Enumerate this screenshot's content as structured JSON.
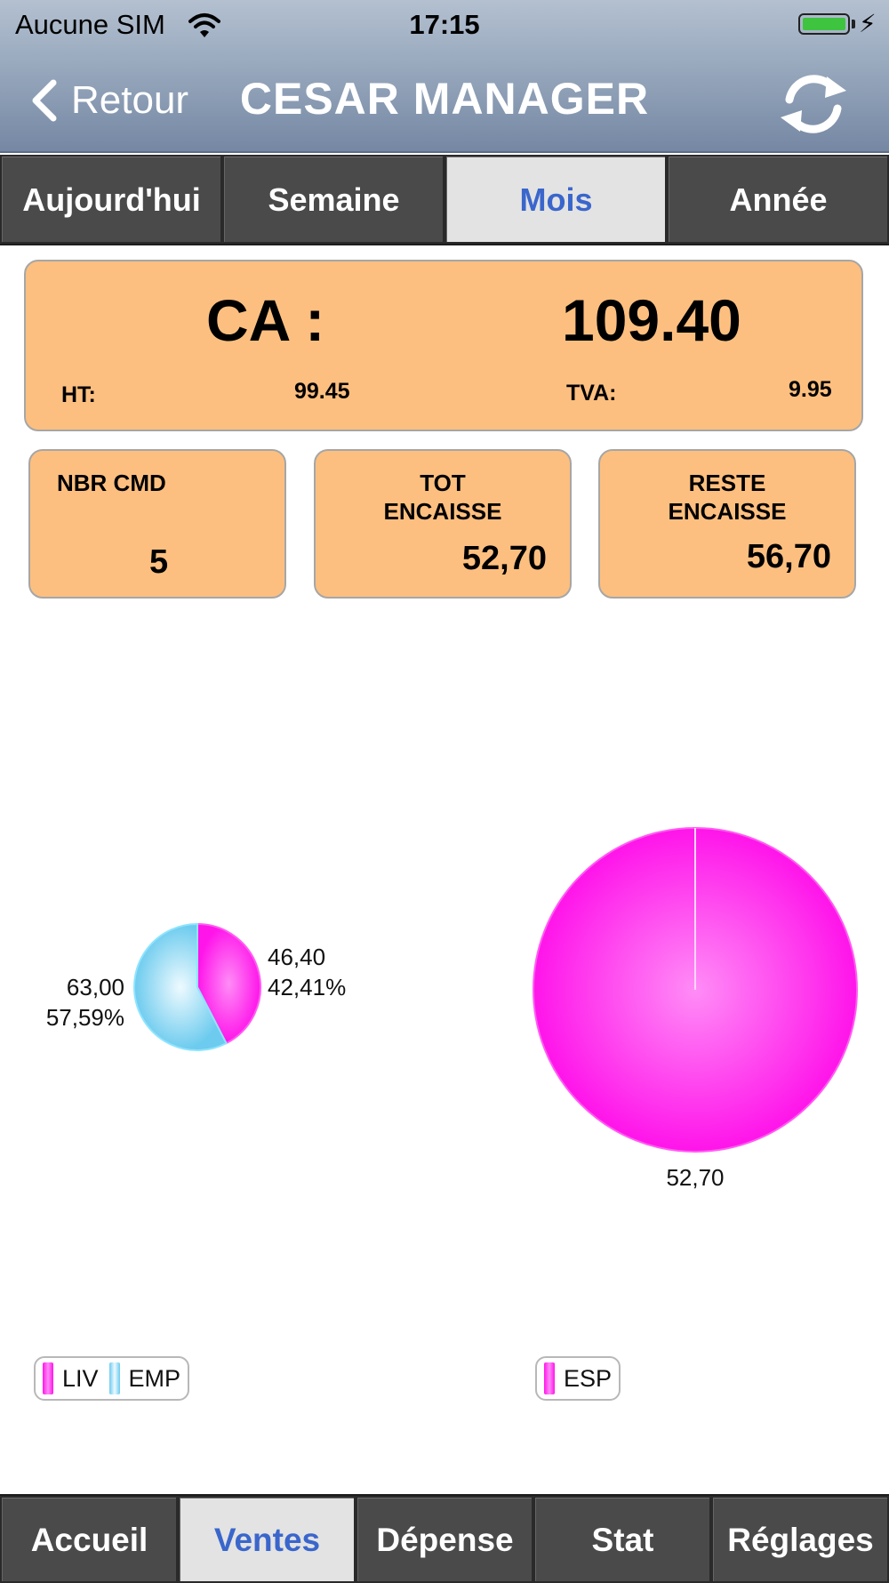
{
  "status_bar": {
    "carrier": "Aucune SIM",
    "time": "17:15"
  },
  "nav": {
    "back_label": "Retour",
    "title": "CESAR MANAGER"
  },
  "tabs": [
    {
      "label": "Aujourd'hui",
      "active": false
    },
    {
      "label": "Semaine",
      "active": false
    },
    {
      "label": "Mois",
      "active": true
    },
    {
      "label": "Année",
      "active": false
    }
  ],
  "ca_card": {
    "label": "CA :",
    "value": "109.40",
    "ht_label": "HT:",
    "ht_value": "99.45",
    "tva_label": "TVA:",
    "tva_value": "9.95"
  },
  "stats": [
    {
      "title_line1": "NBR CMD",
      "title_line2": "",
      "value": "5"
    },
    {
      "title_line1": "TOT",
      "title_line2": "ENCAISSE",
      "value": "52,70"
    },
    {
      "title_line1": "RESTE",
      "title_line2": "ENCAISSE",
      "value": "56,70"
    }
  ],
  "chart_data": [
    {
      "type": "pie",
      "title": "",
      "slices": [
        {
          "name": "LIV",
          "value": 46.4,
          "value_label": "46,40",
          "percent_label": "42,41%",
          "color": "#ff22ee"
        },
        {
          "name": "EMP",
          "value": 63.0,
          "value_label": "63,00",
          "percent_label": "57,59%",
          "color": "#7fd3f0"
        }
      ],
      "legend_placement": "bottom-left"
    },
    {
      "type": "pie",
      "title": "",
      "slices": [
        {
          "name": "ESP",
          "value": 52.7,
          "value_label": "52,70",
          "color": "#ff22ee"
        }
      ],
      "legend_placement": "bottom-left"
    }
  ],
  "bottom_tabs": [
    {
      "label": "Accueil",
      "active": false
    },
    {
      "label": "Ventes",
      "active": true
    },
    {
      "label": "Dépense",
      "active": false
    },
    {
      "label": "Stat",
      "active": false
    },
    {
      "label": "Réglages",
      "active": false
    }
  ],
  "colors": {
    "card_bg": "#fdbf7f",
    "active_tab_text": "#3a66cc",
    "tab_bg": "#4a4a4a"
  }
}
